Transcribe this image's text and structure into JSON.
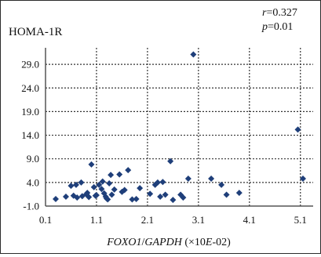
{
  "chart_data": {
    "type": "scatter",
    "title": "HOMA-1R",
    "annotation": {
      "r_label": "r",
      "r_value": "=0.327",
      "p_label": "p",
      "p_value": "=0.01"
    },
    "xlabel": {
      "gene1": "FOXO1",
      "slash": "/",
      "gene2": "GAPDH",
      "unit_prefix": " (×10",
      "unit_e": "E",
      "unit_suffix": "-02)"
    },
    "ylabel": "",
    "xlim": [
      0.1,
      5.35
    ],
    "ylim": [
      -1.0,
      32.5
    ],
    "x_ticks": [
      0.1,
      1.1,
      2.1,
      3.1,
      4.1,
      5.1
    ],
    "x_tick_labels": [
      "0.1",
      "1.1",
      "2.1",
      "3.1",
      "4.1",
      "5.1"
    ],
    "y_ticks": [
      -1.0,
      4.0,
      9.0,
      14.0,
      19.0,
      24.0,
      29.0
    ],
    "y_tick_labels": [
      "-1.0",
      "4.0",
      "9.0",
      "14.0",
      "19.0",
      "24.0",
      "29.0"
    ],
    "grid": true,
    "marker_color": "#1f3f7a",
    "points": [
      [
        0.3,
        0.5
      ],
      [
        0.5,
        1.0
      ],
      [
        0.6,
        3.3
      ],
      [
        0.65,
        1.2
      ],
      [
        0.7,
        3.5
      ],
      [
        0.72,
        0.8
      ],
      [
        0.8,
        4.0
      ],
      [
        0.82,
        1.1
      ],
      [
        0.9,
        1.5
      ],
      [
        0.92,
        1.8
      ],
      [
        0.95,
        0.9
      ],
      [
        1.0,
        7.8
      ],
      [
        1.05,
        3.0
      ],
      [
        1.08,
        1.2
      ],
      [
        1.1,
        1.3
      ],
      [
        1.15,
        3.5
      ],
      [
        1.2,
        2.6
      ],
      [
        1.22,
        4.2
      ],
      [
        1.25,
        1.7
      ],
      [
        1.28,
        1.0
      ],
      [
        1.3,
        0.6
      ],
      [
        1.32,
        0.4
      ],
      [
        1.35,
        3.8
      ],
      [
        1.38,
        5.6
      ],
      [
        1.4,
        1.4
      ],
      [
        1.45,
        2.5
      ],
      [
        1.55,
        5.7
      ],
      [
        1.6,
        2.0
      ],
      [
        1.65,
        2.4
      ],
      [
        1.72,
        6.6
      ],
      [
        1.8,
        0.4
      ],
      [
        1.88,
        0.5
      ],
      [
        1.95,
        2.8
      ],
      [
        2.15,
        1.6
      ],
      [
        2.25,
        3.5
      ],
      [
        2.3,
        4.0
      ],
      [
        2.35,
        1.0
      ],
      [
        2.4,
        4.1
      ],
      [
        2.45,
        1.4
      ],
      [
        2.55,
        8.5
      ],
      [
        2.6,
        0.3
      ],
      [
        2.75,
        1.4
      ],
      [
        2.8,
        0.8
      ],
      [
        2.9,
        4.8
      ],
      [
        3.0,
        31.1
      ],
      [
        3.35,
        4.8
      ],
      [
        3.55,
        3.5
      ],
      [
        3.65,
        1.4
      ],
      [
        3.9,
        1.8
      ],
      [
        5.05,
        15.2
      ],
      [
        5.15,
        4.8
      ]
    ]
  }
}
